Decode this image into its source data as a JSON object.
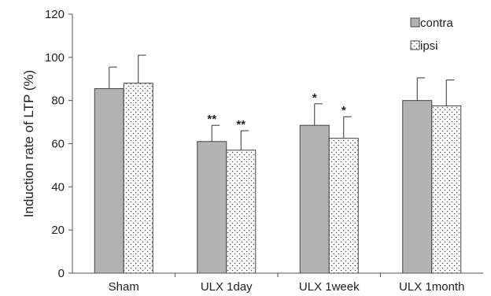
{
  "chart_data": {
    "type": "bar",
    "title": "",
    "xlabel": "",
    "ylabel": "Induction  rate of LTP (%)",
    "ylim": [
      0,
      120
    ],
    "yticks": [
      "0",
      "20",
      "40",
      "60",
      "80",
      "100",
      "120"
    ],
    "categories": [
      "Sham",
      "ULX 1day",
      "ULX 1week",
      "ULX 1month"
    ],
    "series": [
      {
        "name": "contra",
        "values": [
          85.5,
          61,
          68.5,
          80
        ],
        "errors": [
          10,
          7.5,
          10,
          10.5
        ],
        "significance": [
          "",
          "**",
          "*",
          ""
        ],
        "fill": "#b3b3b3",
        "pattern": "solid"
      },
      {
        "name": "ipsi",
        "values": [
          88,
          57,
          62.5,
          77.5
        ],
        "errors": [
          13,
          9,
          10,
          12
        ],
        "significance": [
          "",
          "**",
          "*",
          ""
        ],
        "fill": "#ffffff",
        "pattern": "dotted"
      }
    ],
    "legend_position": "top-right",
    "grid": false
  }
}
